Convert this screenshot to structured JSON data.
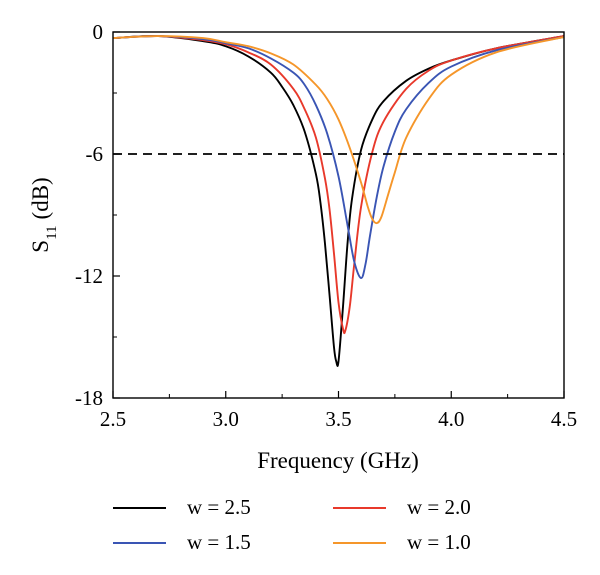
{
  "chart_data": {
    "type": "line",
    "title": "",
    "xlabel": "Frequency (GHz)",
    "ylabel_main": "S",
    "ylabel_sub": "11",
    "ylabel_unit": "(dB)",
    "xlim": [
      2.5,
      4.5
    ],
    "ylim": [
      -18,
      0
    ],
    "xticks": [
      2.5,
      3.0,
      3.5,
      4.0,
      4.5
    ],
    "xtick_labels": [
      "2.5",
      "3.0",
      "3.5",
      "4.0",
      "4.5"
    ],
    "yticks": [
      0,
      -6,
      -12,
      -18
    ],
    "ytick_labels": [
      "0",
      "-6",
      "-12",
      "-18"
    ],
    "threshold": -6,
    "grid": false,
    "legend_position": "bottom",
    "series": [
      {
        "name": "w = 2.5",
        "color": "#000000",
        "x": [
          2.5,
          2.7,
          2.9,
          3.0,
          3.1,
          3.2,
          3.25,
          3.3,
          3.35,
          3.4,
          3.42,
          3.44,
          3.46,
          3.48,
          3.49,
          3.5,
          3.52,
          3.54,
          3.56,
          3.6,
          3.65,
          3.7,
          3.8,
          3.9,
          4.0,
          4.2,
          4.5
        ],
        "y": [
          -0.3,
          -0.2,
          -0.45,
          -0.7,
          -1.2,
          -2.0,
          -2.7,
          -3.6,
          -4.9,
          -7.0,
          -8.4,
          -10.4,
          -12.9,
          -15.5,
          -16.2,
          -16.2,
          -13.5,
          -10.4,
          -8.2,
          -5.8,
          -4.3,
          -3.4,
          -2.4,
          -1.8,
          -1.4,
          -0.8,
          -0.2
        ]
      },
      {
        "name": "w = 2.0",
        "color": "#e8392b",
        "x": [
          2.5,
          2.7,
          2.9,
          3.0,
          3.1,
          3.2,
          3.3,
          3.35,
          3.4,
          3.44,
          3.46,
          3.48,
          3.5,
          3.52,
          3.53,
          3.55,
          3.57,
          3.6,
          3.65,
          3.7,
          3.8,
          3.9,
          4.0,
          4.2,
          4.5
        ],
        "y": [
          -0.3,
          -0.2,
          -0.4,
          -0.6,
          -1.0,
          -1.6,
          -2.8,
          -3.8,
          -5.2,
          -7.2,
          -8.7,
          -10.9,
          -13.3,
          -14.6,
          -14.7,
          -13.5,
          -11.4,
          -8.6,
          -5.9,
          -4.4,
          -2.8,
          -1.9,
          -1.4,
          -0.8,
          -0.2
        ]
      },
      {
        "name": "w = 1.5",
        "color": "#3a55b4",
        "x": [
          2.5,
          2.7,
          2.9,
          3.0,
          3.1,
          3.2,
          3.3,
          3.35,
          3.4,
          3.45,
          3.5,
          3.54,
          3.57,
          3.6,
          3.62,
          3.64,
          3.67,
          3.7,
          3.75,
          3.8,
          3.9,
          4.0,
          4.2,
          4.5
        ],
        "y": [
          -0.3,
          -0.2,
          -0.35,
          -0.55,
          -0.8,
          -1.3,
          -2.0,
          -2.6,
          -3.6,
          -5.0,
          -7.1,
          -9.5,
          -11.3,
          -12.1,
          -11.4,
          -10.0,
          -8.1,
          -6.6,
          -4.9,
          -3.8,
          -2.5,
          -1.7,
          -0.9,
          -0.25
        ]
      },
      {
        "name": "w = 1.0",
        "color": "#f5962a",
        "x": [
          2.5,
          2.7,
          2.9,
          3.0,
          3.1,
          3.2,
          3.3,
          3.4,
          3.45,
          3.5,
          3.55,
          3.6,
          3.63,
          3.65,
          3.67,
          3.69,
          3.72,
          3.75,
          3.8,
          3.9,
          4.0,
          4.2,
          4.5
        ],
        "y": [
          -0.3,
          -0.2,
          -0.3,
          -0.5,
          -0.7,
          -1.05,
          -1.6,
          -2.6,
          -3.3,
          -4.3,
          -5.7,
          -7.4,
          -8.6,
          -9.2,
          -9.4,
          -9.1,
          -8.0,
          -6.9,
          -5.2,
          -3.3,
          -2.1,
          -1.0,
          -0.25
        ]
      }
    ]
  }
}
